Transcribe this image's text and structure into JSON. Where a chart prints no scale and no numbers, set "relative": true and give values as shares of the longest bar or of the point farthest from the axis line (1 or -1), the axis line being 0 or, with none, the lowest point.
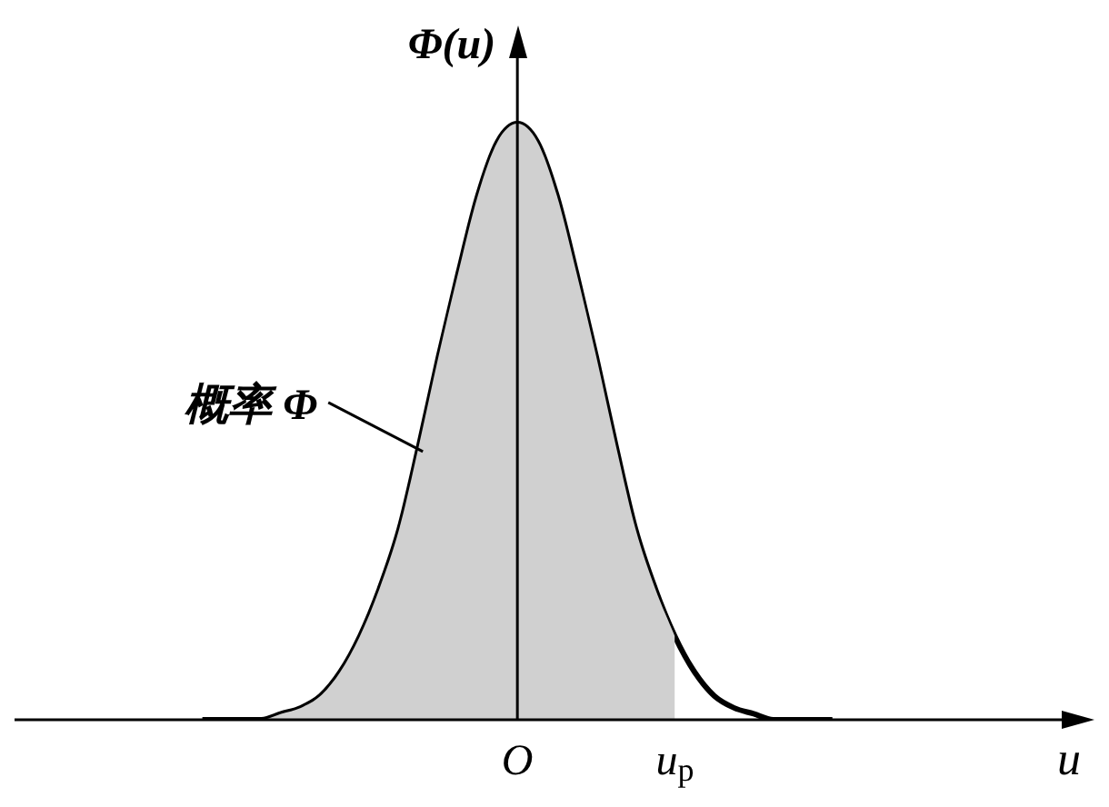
{
  "chart_data": {
    "type": "line",
    "relative": true,
    "xlabel": "u",
    "ylabel": "Φ(u)",
    "categories": [
      null,
      null,
      null,
      null,
      null,
      null,
      null,
      null,
      null,
      null,
      null,
      null,
      null,
      null,
      null,
      null,
      null,
      null,
      null,
      null,
      "O",
      null,
      null,
      null,
      null,
      null,
      null,
      null,
      "u$_{p}$",
      null,
      null,
      null,
      null,
      null,
      null,
      null,
      null,
      null,
      null,
      null,
      null,
      null
    ],
    "series": [
      {
        "type": "area",
        "color": "#d0d0d0",
        "values": [
          null,
          null,
          null,
          null,
          0,
          0,
          0,
          0,
          0.01,
          0.02,
          0.04,
          0.08,
          0.14,
          0.22,
          0.32,
          0.46,
          0.61,
          0.75,
          0.88,
          0.97,
          1,
          0.97,
          0.88,
          0.75,
          0.61,
          0.46,
          0.32,
          0.22,
          0.14,
          null,
          null,
          null,
          null,
          null,
          null,
          null,
          null,
          null,
          null,
          null,
          null,
          null
        ]
      },
      {
        "color": "#000000",
        "values": [
          null,
          null,
          null,
          null,
          0,
          0,
          0,
          0,
          0.01,
          0.02,
          0.04,
          0.08,
          0.14,
          0.22,
          0.32,
          0.46,
          0.61,
          0.75,
          0.88,
          0.97,
          1,
          0.97,
          0.88,
          0.75,
          0.61,
          0.46,
          0.32,
          0.22,
          0.14,
          0.08,
          0.04,
          0.02,
          0.01,
          0,
          0,
          0,
          0,
          null,
          null,
          null,
          null,
          null
        ]
      }
    ],
    "annotations": [
      "概率 Φ"
    ],
    "legend": false,
    "grid": false,
    "marker": "none"
  }
}
